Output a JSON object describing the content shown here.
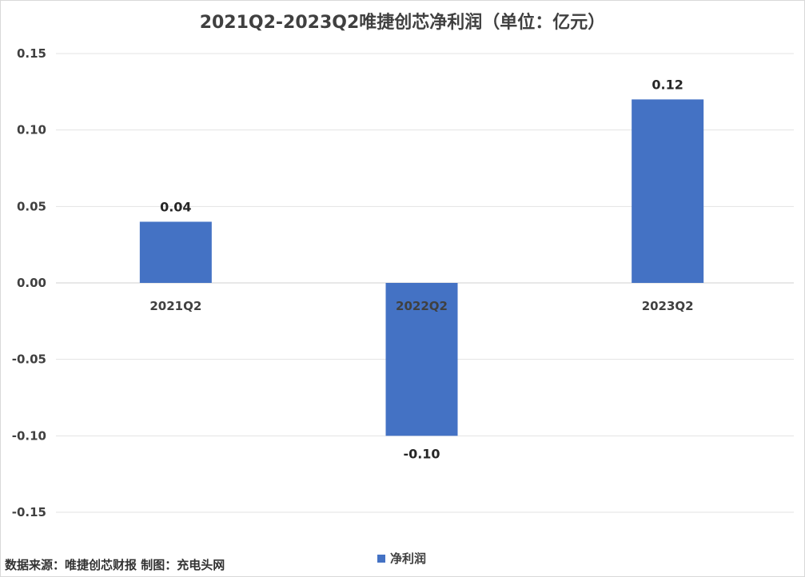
{
  "chart_data": {
    "type": "bar",
    "title": "2021Q2-2023Q2唯捷创芯净利润（单位：亿元）",
    "categories": [
      "2021Q2",
      "2022Q2",
      "2023Q2"
    ],
    "series": [
      {
        "name": "净利润",
        "values": [
          0.04,
          -0.1,
          0.12
        ],
        "color": "#4472c4"
      }
    ],
    "data_labels": [
      "0.04",
      "-0.10",
      "0.12"
    ],
    "y_ticks": [
      "0.15",
      "0.10",
      "0.05",
      "0.00",
      "-0.05",
      "-0.10",
      "-0.15"
    ],
    "ylim": [
      -0.15,
      0.15
    ],
    "grid": true,
    "legend_position": "bottom"
  },
  "footer": {
    "source": "数据来源：唯捷创芯财报 制图：充电头网"
  }
}
